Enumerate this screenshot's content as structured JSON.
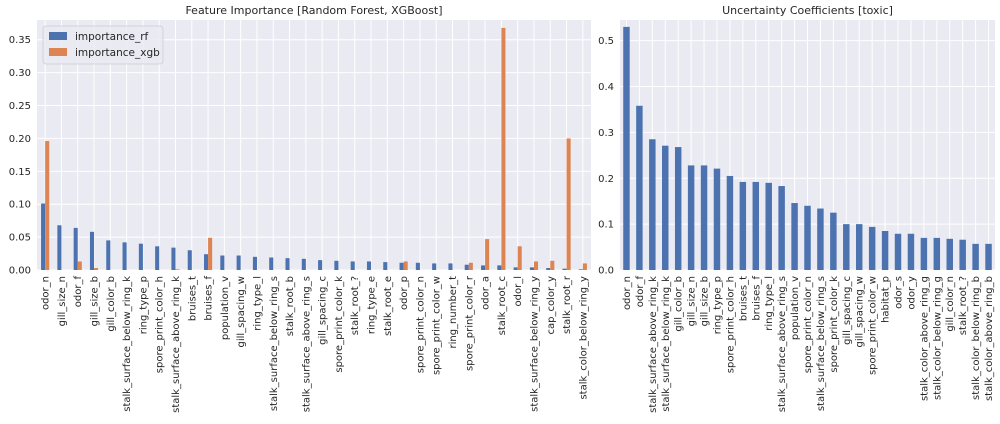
{
  "colors": {
    "background": "#EAEAF2",
    "grid": "#ffffff",
    "rf": "#4C72B0",
    "xgb": "#DD8452",
    "uc": "#4C72B0"
  },
  "chart_data": [
    {
      "type": "bar",
      "title": "Feature Importance [Random Forest, XGBoost]",
      "xlabel": "",
      "ylabel": "",
      "ylim": [
        0,
        0.38
      ],
      "yticks": [
        0.0,
        0.05,
        0.1,
        0.15,
        0.2,
        0.25,
        0.3,
        0.35
      ],
      "ytick_labels": [
        "0.00",
        "0.05",
        "0.10",
        "0.15",
        "0.20",
        "0.25",
        "0.30",
        "0.35"
      ],
      "grid": true,
      "legend_position": "top-left",
      "categories": [
        "odor_n",
        "gill_size_n",
        "odor_f",
        "gill_size_b",
        "gill_color_b",
        "stalk_surface_below_ring_k",
        "ring_type_p",
        "spore_print_color_h",
        "stalk_surface_above_ring_k",
        "bruises_t",
        "bruises_f",
        "population_v",
        "gill_spacing_w",
        "ring_type_l",
        "stalk_surface_below_ring_s",
        "stalk_root_b",
        "stalk_surface_above_ring_s",
        "gill_spacing_c",
        "spore_print_color_k",
        "stalk_root_?",
        "ring_type_e",
        "stalk_root_e",
        "odor_p",
        "spore_print_color_n",
        "spore_print_color_w",
        "ring_number_t",
        "spore_print_color_r",
        "odor_a",
        "stalk_root_c",
        "odor_l",
        "stalk_surface_below_ring_y",
        "cap_color_y",
        "stalk_root_r",
        "stalk_color_below_ring_y"
      ],
      "series": [
        {
          "name": "importance_rf",
          "values": [
            0.101,
            0.068,
            0.064,
            0.058,
            0.045,
            0.042,
            0.04,
            0.036,
            0.034,
            0.03,
            0.024,
            0.022,
            0.022,
            0.02,
            0.019,
            0.018,
            0.017,
            0.015,
            0.014,
            0.013,
            0.013,
            0.012,
            0.011,
            0.011,
            0.01,
            0.01,
            0.008,
            0.007,
            0.007,
            0.004,
            0.004,
            0.003,
            0.002,
            0.001
          ]
        },
        {
          "name": "importance_xgb",
          "values": [
            0.196,
            0.0,
            0.013,
            0.003,
            0.0,
            0.0,
            0.0,
            0.0,
            0.001,
            0.0,
            0.049,
            0.0,
            0.0,
            0.0,
            0.0,
            0.0,
            0.0,
            0.0,
            0.0,
            0.0,
            0.0,
            0.0,
            0.013,
            0.0,
            0.0,
            0.0,
            0.011,
            0.047,
            0.368,
            0.036,
            0.013,
            0.014,
            0.2,
            0.01
          ]
        }
      ]
    },
    {
      "type": "bar",
      "title": "Uncertainty Coefficients [toxic]",
      "xlabel": "",
      "ylabel": "",
      "ylim": [
        0,
        0.545
      ],
      "yticks": [
        0.0,
        0.1,
        0.2,
        0.3,
        0.4,
        0.5
      ],
      "ytick_labels": [
        "0.0",
        "0.1",
        "0.2",
        "0.3",
        "0.4",
        "0.5"
      ],
      "grid": true,
      "categories": [
        "odor_n",
        "odor_f",
        "stalk_surface_above_ring_k",
        "stalk_surface_below_ring_k",
        "gill_color_b",
        "gill_size_n",
        "gill_size_b",
        "ring_type_p",
        "spore_print_color_h",
        "bruises_t",
        "bruises_f",
        "ring_type_l",
        "stalk_surface_above_ring_s",
        "population_v",
        "spore_print_color_n",
        "stalk_surface_below_ring_s",
        "spore_print_color_k",
        "gill_spacing_c",
        "gill_spacing_w",
        "spore_print_color_w",
        "habitat_p",
        "odor_s",
        "odor_y",
        "stalk_color_above_ring_g",
        "stalk_color_below_ring_g",
        "gill_color_n",
        "stalk_root_?",
        "stalk_color_below_ring_b",
        "stalk_color_above_ring_b"
      ],
      "series": [
        {
          "name": "",
          "values": [
            0.53,
            0.358,
            0.285,
            0.271,
            0.268,
            0.228,
            0.228,
            0.221,
            0.205,
            0.192,
            0.192,
            0.19,
            0.183,
            0.146,
            0.14,
            0.134,
            0.125,
            0.1,
            0.1,
            0.094,
            0.085,
            0.079,
            0.079,
            0.07,
            0.07,
            0.068,
            0.066,
            0.057,
            0.057
          ]
        }
      ]
    }
  ]
}
